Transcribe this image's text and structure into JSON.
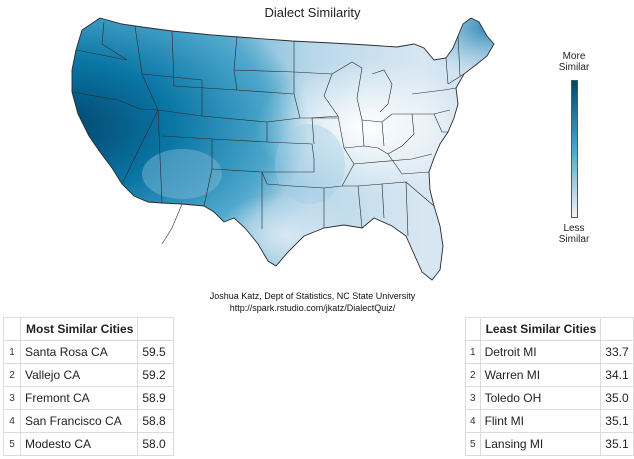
{
  "title": "Dialect Similarity",
  "legend": {
    "top_label_line1": "More",
    "top_label_line2": "Similar",
    "bottom_label_line1": "Less",
    "bottom_label_line2": "Similar",
    "color_high": "#03456b",
    "color_mid": "#4ca6cb",
    "color_low": "#f4f2fa"
  },
  "credit": {
    "line1": "Joshua Katz, Dept of Statistics, NC State University",
    "line2": "http://spark.rstudio.com/jkatz/DialectQuiz/"
  },
  "most_similar": {
    "header": "Most Similar Cities",
    "rows": [
      {
        "rank": "1",
        "city": "Santa Rosa CA",
        "value": "59.5"
      },
      {
        "rank": "2",
        "city": "Vallejo CA",
        "value": "59.2"
      },
      {
        "rank": "3",
        "city": "Fremont CA",
        "value": "58.9"
      },
      {
        "rank": "4",
        "city": "San Francisco CA",
        "value": "58.8"
      },
      {
        "rank": "5",
        "city": "Modesto CA",
        "value": "58.0"
      }
    ]
  },
  "least_similar": {
    "header": "Least Similar Cities",
    "rows": [
      {
        "rank": "1",
        "city": "Detroit MI",
        "value": "33.7"
      },
      {
        "rank": "2",
        "city": "Warren MI",
        "value": "34.1"
      },
      {
        "rank": "3",
        "city": "Toledo OH",
        "value": "35.0"
      },
      {
        "rank": "4",
        "city": "Flint MI",
        "value": "35.1"
      },
      {
        "rank": "5",
        "city": "Lansing MI",
        "value": "35.1"
      }
    ]
  }
}
